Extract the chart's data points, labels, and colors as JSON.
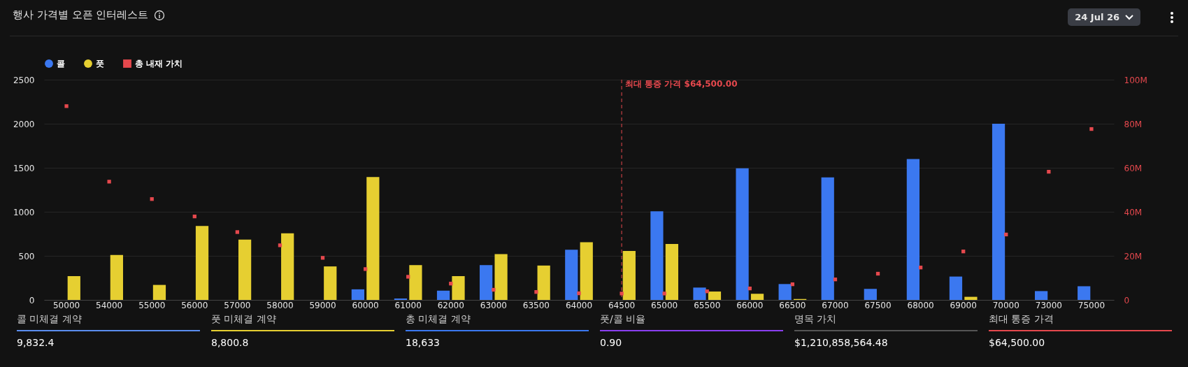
{
  "chart_data": {
    "type": "bar",
    "title": "행사 가격별 오픈 인터레스트",
    "categories": [
      "50000",
      "54000",
      "55000",
      "56000",
      "57000",
      "58000",
      "59000",
      "60000",
      "61000",
      "62000",
      "63000",
      "63500",
      "64000",
      "64500",
      "65000",
      "65500",
      "66000",
      "66500",
      "67000",
      "67500",
      "68000",
      "69000",
      "70000",
      "73000",
      "75000"
    ],
    "series": [
      {
        "name": "콜",
        "color": "#3b78f0",
        "values": [
          null,
          null,
          null,
          null,
          null,
          null,
          null,
          120,
          15,
          105,
          395,
          null,
          570,
          null,
          1005,
          140,
          1495,
          180,
          1390,
          125,
          1600,
          265,
          2000,
          100,
          155
        ]
      },
      {
        "name": "풋",
        "color": "#e6cf31",
        "values": [
          270,
          510,
          170,
          840,
          685,
          755,
          380,
          1395,
          395,
          270,
          520,
          390,
          655,
          555,
          635,
          95,
          70,
          10,
          null,
          null,
          null,
          35,
          null,
          null,
          null
        ]
      },
      {
        "name": "총 내재 가치",
        "type": "scatter",
        "axis": "y2",
        "marker": "square",
        "color": "#e5484d",
        "values": [
          88000000,
          53700000,
          45800000,
          37900000,
          30800000,
          24800000,
          19100000,
          14000000,
          10500000,
          7400000,
          4600000,
          3600000,
          3000000,
          2900000,
          2900000,
          3900000,
          5200000,
          7100000,
          9300000,
          11900000,
          14700000,
          22000000,
          29700000,
          58200000,
          77600000
        ]
      }
    ],
    "ylim": [
      0,
      2500
    ],
    "yticks": [
      0,
      500,
      1000,
      1500,
      2000,
      2500
    ],
    "y2lim": [
      0,
      100000000
    ],
    "y2ticks": [
      0,
      {
        "value": 20000000,
        "label": "20M"
      },
      {
        "value": 40000000,
        "label": "40M"
      },
      {
        "value": 60000000,
        "label": "60M"
      },
      {
        "value": 80000000,
        "label": "80M"
      },
      {
        "value": 100000000,
        "label": "100M"
      }
    ],
    "ref_lines": [
      {
        "axis": "x",
        "value": "64500",
        "label": "최대 통증 가격 $64,500.00",
        "color": "#e5484d",
        "line_style": "dashed"
      }
    ],
    "grid": "y",
    "legend": "top left",
    "annotations": [
      "24 Jul 26",
      "콜 미체결 계약",
      "9,832.4",
      "풋 미체결 계약",
      "8,800.8",
      "총 미체결 계약",
      "18,633",
      "풋/콜 비율",
      "0.90",
      "명목 가치",
      "$1,210,858,564.48",
      "최대 통증 가격",
      "$64,500.00"
    ]
  }
}
